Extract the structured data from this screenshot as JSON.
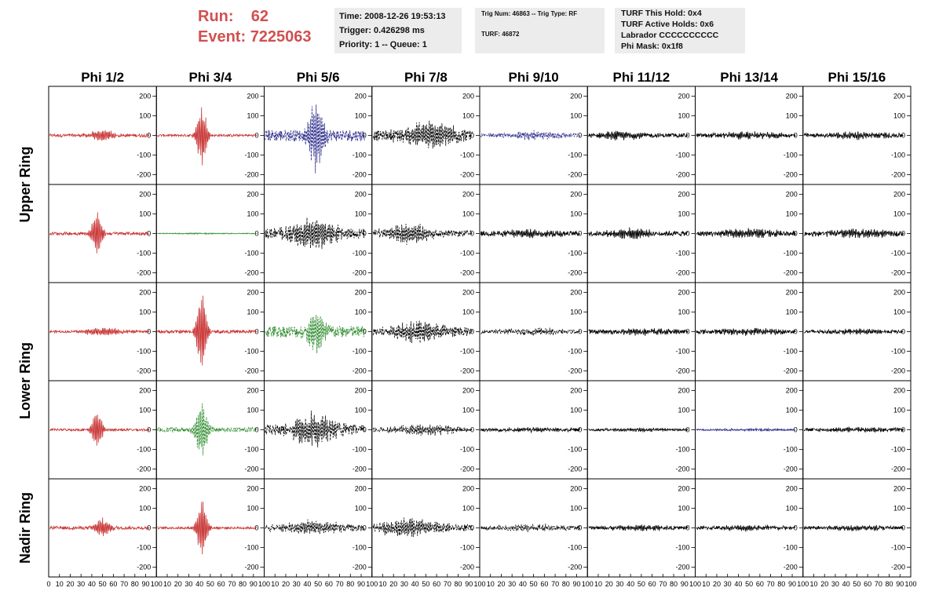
{
  "header": {
    "run_label": "Run:",
    "run_value": "62",
    "event_label": "Event:",
    "event_value": "7225063",
    "time_line": "Time: 2008-12-26 19:53:13",
    "trigger_line": "Trigger: 0.426298 ms",
    "priority_line": "Priority: 1 -- Queue: 1",
    "trig_num_line": "Trig Num: 46863 -- Trig Type: RF",
    "turf_line": "TURF: 46872",
    "turf_this_hold": "TURF This Hold: 0x4",
    "turf_active_holds": "TURF Active Holds: 0x6",
    "labrador": "Labrador CCCCCCCCCC",
    "phi_mask": "Phi Mask: 0x1f8"
  },
  "chart_data": {
    "type": "line",
    "columns": [
      "Phi 1/2",
      "Phi 3/4",
      "Phi 5/6",
      "Phi 7/8",
      "Phi 9/10",
      "Phi 11/12",
      "Phi 13/14",
      "Phi 15/16"
    ],
    "row_labels": [
      {
        "text": "Upper Ring",
        "rows": [
          0,
          1
        ]
      },
      {
        "text": "Lower Ring",
        "rows": [
          2,
          3
        ]
      },
      {
        "text": "Nadir Ring",
        "rows": [
          4,
          4
        ]
      }
    ],
    "xlim": [
      0,
      100
    ],
    "ylim": [
      -250,
      250
    ],
    "x_ticks": [
      0,
      10,
      20,
      30,
      40,
      50,
      60,
      70,
      80,
      90,
      100
    ],
    "y_ticks": [
      200,
      100,
      0,
      -100,
      -200
    ],
    "colors": {
      "red": "#c83232",
      "green": "#2e8b2e",
      "blue": "#2a2a8a",
      "black": "#000000"
    },
    "panels": [
      [
        {
          "color": "red",
          "style": "solid",
          "amp": 30,
          "peak": 50,
          "width": 12,
          "noise": 8
        },
        {
          "color": "red",
          "style": "solid",
          "amp": 170,
          "peak": 42,
          "width": 5,
          "noise": 6
        },
        {
          "color": "blue",
          "style": "dashed",
          "amp": 190,
          "peak": 48,
          "width": 7,
          "noise": 30
        },
        {
          "color": "black",
          "style": "dashed",
          "amp": 60,
          "peak": 55,
          "width": 30,
          "noise": 25
        },
        {
          "color": "blue",
          "style": "dashed",
          "amp": 20,
          "peak": 50,
          "width": 30,
          "noise": 8
        },
        {
          "color": "black",
          "style": "solid",
          "amp": 20,
          "peak": 30,
          "width": 20,
          "noise": 10
        },
        {
          "color": "black",
          "style": "solid",
          "amp": 15,
          "peak": 50,
          "width": 30,
          "noise": 10
        },
        {
          "color": "black",
          "style": "solid",
          "amp": 15,
          "peak": 50,
          "width": 30,
          "noise": 10
        }
      ],
      [
        {
          "color": "red",
          "style": "solid",
          "amp": 130,
          "peak": 45,
          "width": 5,
          "noise": 8
        },
        {
          "color": "green",
          "style": "solid",
          "amp": 3,
          "peak": 40,
          "width": 20,
          "noise": 2
        },
        {
          "color": "black",
          "style": "dashed",
          "amp": 75,
          "peak": 45,
          "width": 25,
          "noise": 25
        },
        {
          "color": "black",
          "style": "dashed",
          "amp": 45,
          "peak": 35,
          "width": 25,
          "noise": 15
        },
        {
          "color": "black",
          "style": "solid",
          "amp": 20,
          "peak": 50,
          "width": 30,
          "noise": 12
        },
        {
          "color": "black",
          "style": "solid",
          "amp": 25,
          "peak": 40,
          "width": 20,
          "noise": 12
        },
        {
          "color": "black",
          "style": "solid",
          "amp": 20,
          "peak": 50,
          "width": 30,
          "noise": 12
        },
        {
          "color": "black",
          "style": "solid",
          "amp": 20,
          "peak": 50,
          "width": 30,
          "noise": 12
        }
      ],
      [
        {
          "color": "red",
          "style": "solid",
          "amp": 20,
          "peak": 50,
          "width": 20,
          "noise": 6
        },
        {
          "color": "red",
          "style": "solid",
          "amp": 220,
          "peak": 42,
          "width": 5,
          "noise": 8
        },
        {
          "color": "green",
          "style": "dashed",
          "amp": 100,
          "peak": 48,
          "width": 10,
          "noise": 30
        },
        {
          "color": "black",
          "style": "dashed",
          "amp": 50,
          "peak": 45,
          "width": 30,
          "noise": 18
        },
        {
          "color": "black",
          "style": "dashed",
          "amp": 15,
          "peak": 50,
          "width": 30,
          "noise": 10
        },
        {
          "color": "black",
          "style": "solid",
          "amp": 15,
          "peak": 50,
          "width": 30,
          "noise": 10
        },
        {
          "color": "black",
          "style": "solid",
          "amp": 15,
          "peak": 50,
          "width": 30,
          "noise": 10
        },
        {
          "color": "black",
          "style": "solid",
          "amp": 10,
          "peak": 50,
          "width": 30,
          "noise": 8
        }
      ],
      [
        {
          "color": "red",
          "style": "solid",
          "amp": 100,
          "peak": 45,
          "width": 5,
          "noise": 6
        },
        {
          "color": "green",
          "style": "dashed",
          "amp": 150,
          "peak": 42,
          "width": 6,
          "noise": 12
        },
        {
          "color": "black",
          "style": "dashed",
          "amp": 80,
          "peak": 45,
          "width": 22,
          "noise": 25
        },
        {
          "color": "black",
          "style": "dashed",
          "amp": 25,
          "peak": 50,
          "width": 30,
          "noise": 12
        },
        {
          "color": "black",
          "style": "solid",
          "amp": 10,
          "peak": 50,
          "width": 30,
          "noise": 8
        },
        {
          "color": "black",
          "style": "solid",
          "amp": 8,
          "peak": 50,
          "width": 30,
          "noise": 6
        },
        {
          "color": "blue",
          "style": "solid",
          "amp": 5,
          "peak": 50,
          "width": 30,
          "noise": 4
        },
        {
          "color": "black",
          "style": "solid",
          "amp": 10,
          "peak": 50,
          "width": 30,
          "noise": 8
        }
      ],
      [
        {
          "color": "red",
          "style": "solid",
          "amp": 50,
          "peak": 50,
          "width": 8,
          "noise": 8
        },
        {
          "color": "red",
          "style": "solid",
          "amp": 150,
          "peak": 42,
          "width": 5,
          "noise": 6
        },
        {
          "color": "black",
          "style": "dashed",
          "amp": 30,
          "peak": 45,
          "width": 30,
          "noise": 15
        },
        {
          "color": "black",
          "style": "dashed",
          "amp": 45,
          "peak": 35,
          "width": 28,
          "noise": 18
        },
        {
          "color": "black",
          "style": "dashed",
          "amp": 15,
          "peak": 50,
          "width": 30,
          "noise": 10
        },
        {
          "color": "black",
          "style": "solid",
          "amp": 12,
          "peak": 50,
          "width": 30,
          "noise": 8
        },
        {
          "color": "black",
          "style": "solid",
          "amp": 12,
          "peak": 50,
          "width": 30,
          "noise": 8
        },
        {
          "color": "black",
          "style": "solid",
          "amp": 12,
          "peak": 50,
          "width": 30,
          "noise": 8
        }
      ]
    ]
  }
}
